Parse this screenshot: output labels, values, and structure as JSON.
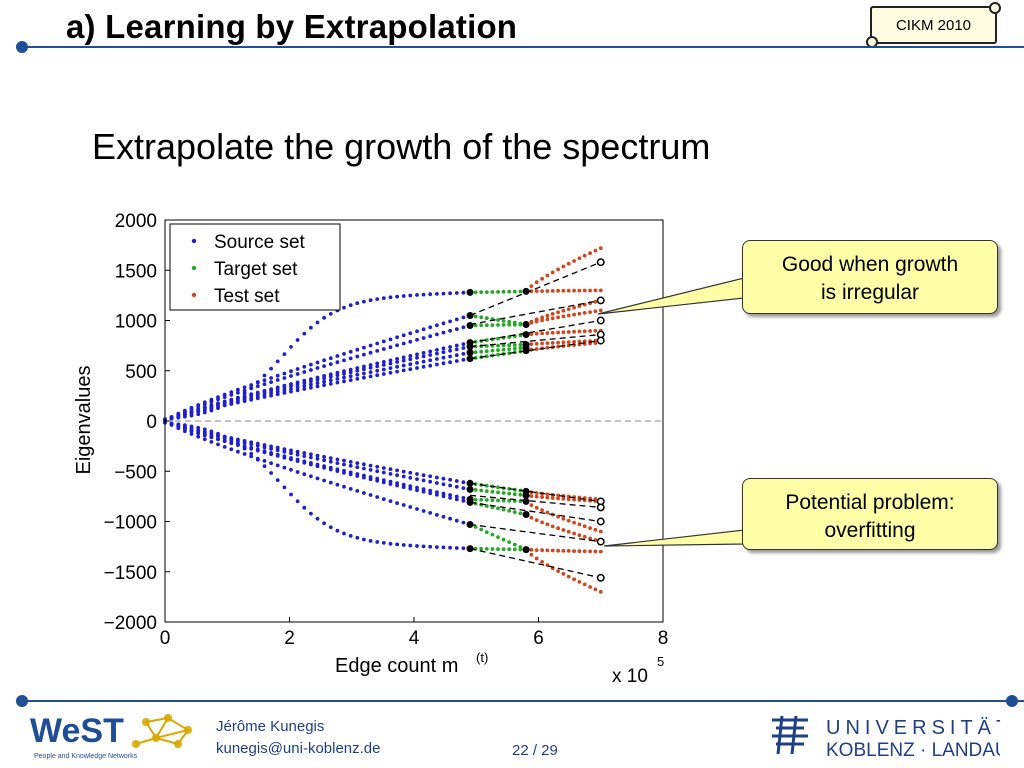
{
  "header": {
    "title": "a) Learning by Extrapolation",
    "badge": "CIKM 2010"
  },
  "subtitle": "Extrapolate the growth of the spectrum",
  "callouts": [
    {
      "text_1": "Good when growth",
      "text_2": "is irregular"
    },
    {
      "text_1": "Potential problem:",
      "text_2": "overfitting"
    }
  ],
  "footer": {
    "author": "Jérôme Kunegis",
    "email": "kunegis@uni-koblenz.de",
    "page": "22 / 29",
    "logo_left": "WeST",
    "logo_left_sub": "People and Knowledge Networks",
    "logo_right_1": "UNIVERSITÄT",
    "logo_right_2": "KOBLENZ · LANDAU"
  },
  "colors": {
    "source": "#1f1fcc",
    "target": "#22aa22",
    "test": "#d2461e",
    "accent": "#1f4e96"
  },
  "chart_data": {
    "type": "scatter",
    "xlabel": "Edge count m",
    "xlabel_sup": "(t)",
    "ylabel": "Eigenvalues",
    "x_multiplier": "x 10",
    "x_multiplier_sup": "5",
    "xlim": [
      0,
      8
    ],
    "ylim": [
      -2000,
      2000
    ],
    "xticks": [
      "0",
      "2",
      "4",
      "6",
      "8"
    ],
    "yticks": [
      "2000",
      "1500",
      "1000",
      "500",
      "0",
      "−500",
      "−1000",
      "−1500",
      "−2000"
    ],
    "ytick_values": [
      2000,
      1500,
      1000,
      500,
      0,
      -500,
      -1000,
      -1500,
      -2000
    ],
    "xtick_values": [
      0,
      2,
      4,
      6,
      8
    ],
    "legend": [
      "Source set",
      "Target set",
      "Test set"
    ],
    "legend_position": "top-left",
    "series": [
      {
        "name": "Source set",
        "x_range": [
          0,
          4.9
        ],
        "end_values": [
          1280,
          1050,
          950,
          780,
          740,
          680,
          620,
          -620,
          -680,
          -780,
          -810,
          -1030,
          -1270
        ]
      },
      {
        "name": "Target set",
        "x_range": [
          4.9,
          5.8
        ],
        "end_values": [
          1290,
          960,
          860,
          760,
          730,
          700,
          -700,
          -740,
          -800,
          -930,
          -1280
        ]
      },
      {
        "name": "Test set",
        "x_range": [
          5.8,
          7.0
        ],
        "end_values": [
          1720,
          1300,
          1200,
          1100,
          900,
          800,
          780,
          -780,
          -800,
          -1100,
          -1200,
          -1300,
          -1700
        ]
      }
    ],
    "extrapolation_end_values": [
      1580,
      1200,
      1000,
      860,
      800,
      -800,
      -860,
      -1000,
      -1200,
      -1560
    ]
  }
}
